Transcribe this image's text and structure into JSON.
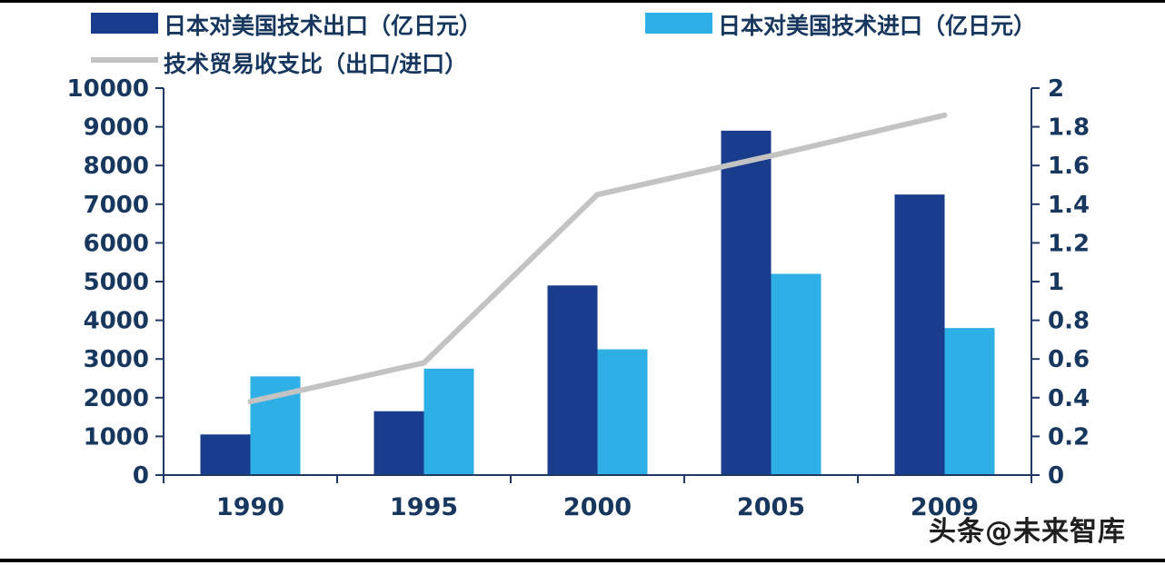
{
  "legend": {
    "export_label": "日本对美国技术出口（亿日元）",
    "import_label": "日本对美国技术进口（亿日元）",
    "ratio_label": "技术贸易收支比（出口/进口）"
  },
  "watermark": "头条@未来智库",
  "colors": {
    "export_bar": "#1A3C8C",
    "import_bar": "#2EB0E6",
    "ratio_line": "#C3C3C3",
    "axis_line": "#1F3864",
    "axis_text": "#17375E"
  },
  "chart_data": {
    "type": "bar",
    "title": "",
    "categories": [
      "1990",
      "1995",
      "2000",
      "2005",
      "2009"
    ],
    "series": [
      {
        "name": "日本对美国技术出口（亿日元）",
        "type": "bar",
        "axis": "left",
        "values": [
          1050,
          1650,
          4900,
          8900,
          7250
        ]
      },
      {
        "name": "日本对美国技术进口（亿日元）",
        "type": "bar",
        "axis": "left",
        "values": [
          2550,
          2750,
          3250,
          5200,
          3800
        ]
      },
      {
        "name": "技术贸易收支比（出口/进口）",
        "type": "line",
        "axis": "right",
        "values": [
          0.38,
          0.58,
          1.45,
          1.65,
          1.86
        ]
      }
    ],
    "left_axis": {
      "min": 0,
      "max": 10000,
      "step": 1000
    },
    "right_axis": {
      "min": 0,
      "max": 2,
      "step": 0.2
    },
    "grid": false,
    "legend_position": "top-left"
  }
}
